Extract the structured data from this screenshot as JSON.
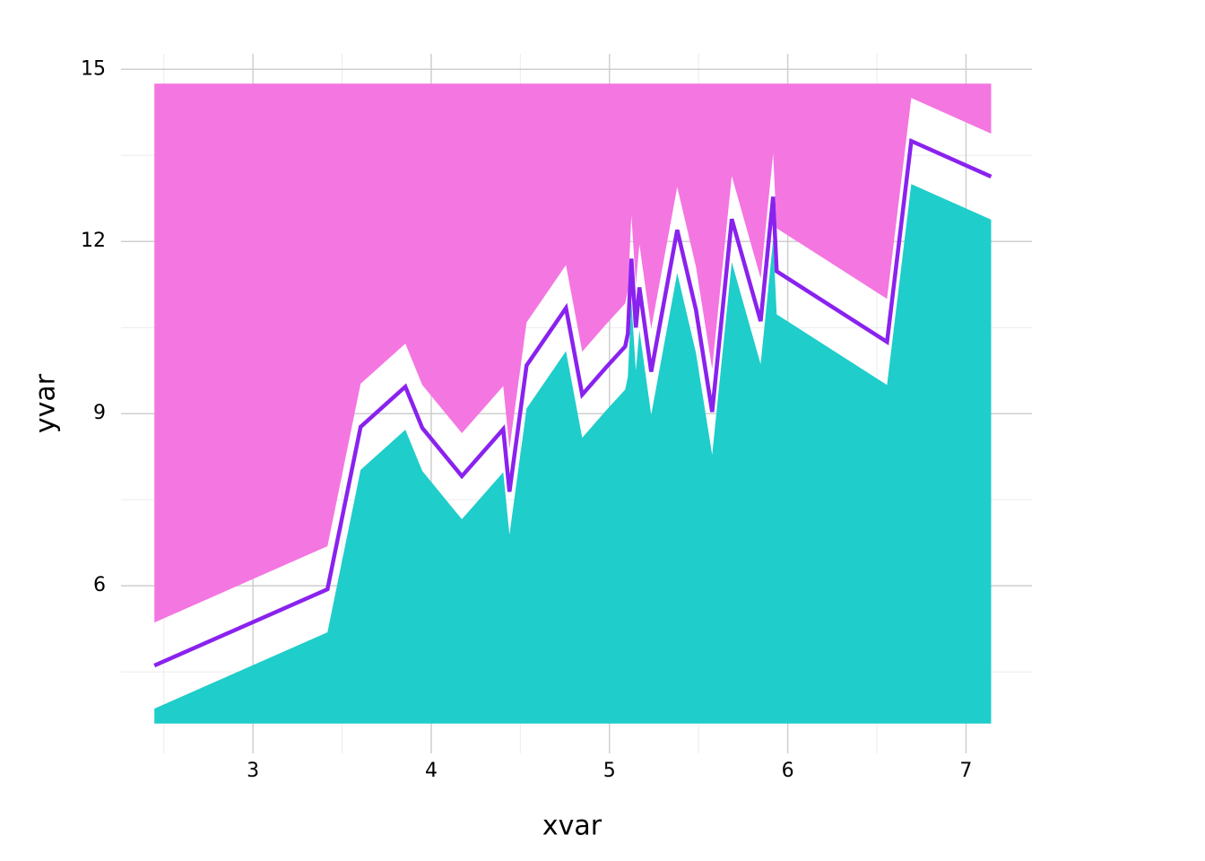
{
  "chart_data": {
    "type": "ribbon-line",
    "x_label": "xvar",
    "y_label": "yvar",
    "xlim": [
      2.26,
      7.37
    ],
    "ylim": [
      3.08,
      15.27
    ],
    "xticks": [
      3,
      4,
      5,
      6,
      7
    ],
    "yticks": [
      6,
      9,
      12,
      15
    ],
    "x_minor_ticks": [
      2.5,
      3.5,
      4.5,
      5.5,
      6.5
    ],
    "y_minor_ticks": [
      4.5,
      7.5,
      10.5,
      13.5
    ],
    "grid": true,
    "x": [
      2.447,
      3.418,
      3.604,
      3.855,
      3.95,
      4.172,
      4.404,
      4.439,
      4.535,
      4.756,
      4.847,
      4.982,
      5.088,
      5.103,
      5.123,
      5.148,
      5.168,
      5.234,
      5.38,
      5.485,
      5.576,
      5.686,
      5.848,
      5.918,
      5.938,
      6.557,
      6.693,
      7.141
    ],
    "series": [
      {
        "kind": "ribbon",
        "color": "#f476e1",
        "lower": [
          5.36,
          6.69,
          9.52,
          10.22,
          9.5,
          8.66,
          9.48,
          8.39,
          10.59,
          11.59,
          10.08,
          10.56,
          10.92,
          11.14,
          12.45,
          11.25,
          11.95,
          10.48,
          12.95,
          11.56,
          9.78,
          13.14,
          11.36,
          13.53,
          12.23,
          11.0,
          14.5,
          13.88
        ],
        "upper": [
          14.75,
          14.75,
          14.75,
          14.75,
          14.75,
          14.75,
          14.75,
          14.75,
          14.75,
          14.75,
          14.75,
          14.75,
          14.75,
          14.75,
          14.75,
          14.75,
          14.75,
          14.75,
          14.75,
          14.75,
          14.75,
          14.75,
          14.75,
          14.75,
          14.75,
          14.75,
          14.75,
          14.75
        ]
      },
      {
        "kind": "ribbon",
        "color": "#1fcdca",
        "lower": [
          3.6,
          3.6,
          3.6,
          3.6,
          3.6,
          3.6,
          3.6,
          3.6,
          3.6,
          3.6,
          3.6,
          3.6,
          3.6,
          3.6,
          3.6,
          3.6,
          3.6,
          3.6,
          3.6,
          3.6,
          3.6,
          3.6,
          3.6,
          3.6,
          3.6,
          3.6,
          3.6,
          3.6
        ],
        "upper": [
          3.86,
          5.19,
          8.02,
          8.72,
          8.0,
          7.16,
          7.98,
          6.89,
          9.09,
          10.09,
          8.58,
          9.06,
          9.42,
          9.64,
          10.95,
          9.75,
          10.45,
          8.98,
          11.45,
          10.06,
          8.28,
          11.64,
          9.86,
          12.03,
          10.73,
          9.5,
          13.0,
          12.38
        ]
      },
      {
        "kind": "line",
        "color": "#8a22ee",
        "values": [
          4.61,
          5.94,
          8.77,
          9.47,
          8.75,
          7.91,
          8.73,
          7.64,
          9.84,
          10.84,
          9.33,
          9.81,
          10.17,
          10.39,
          11.7,
          10.5,
          11.2,
          9.73,
          12.2,
          10.81,
          9.03,
          12.39,
          10.61,
          12.78,
          11.48,
          10.25,
          13.75,
          13.13
        ]
      }
    ]
  }
}
